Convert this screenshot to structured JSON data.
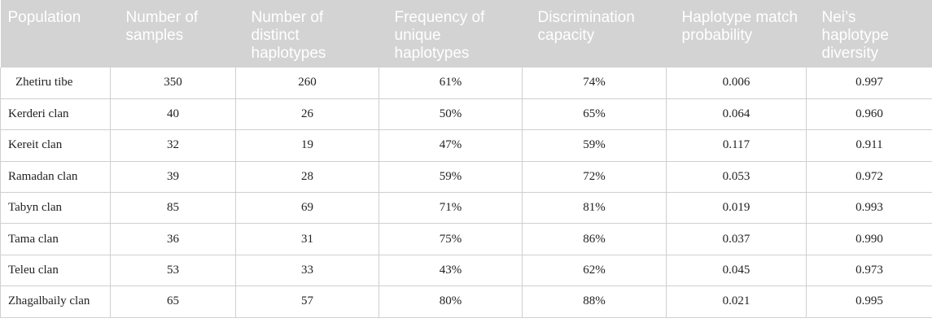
{
  "table": {
    "headers": [
      "Population",
      "Number of samples",
      "Number of distinct haplotypes",
      "Frequency of unique haplotypes",
      "Discrimination capacity",
      "Haplotype match probability",
      "Nei’s haplotype diversity"
    ],
    "rows": [
      [
        "Zhetiru tibe",
        "350",
        "260",
        "61%",
        "74%",
        "0.006",
        "0.997"
      ],
      [
        "Kerderi clan",
        "40",
        "26",
        "50%",
        "65%",
        "0.064",
        "0.960"
      ],
      [
        "Kereit clan",
        "32",
        "19",
        "47%",
        "59%",
        "0.117",
        "0.911"
      ],
      [
        "Ramadan clan",
        "39",
        "28",
        "59%",
        "72%",
        "0.053",
        "0.972"
      ],
      [
        "Tabyn clan",
        "85",
        "69",
        "71%",
        "81%",
        "0.019",
        "0.993"
      ],
      [
        "Tama clan",
        "36",
        "31",
        "75%",
        "86%",
        "0.037",
        "0.990"
      ],
      [
        "Teleu clan",
        "53",
        "33",
        "43%",
        "62%",
        "0.045",
        "0.973"
      ],
      [
        "Zhagalbaily clan",
        "65",
        "57",
        "80%",
        "88%",
        "0.021",
        "0.995"
      ]
    ]
  }
}
